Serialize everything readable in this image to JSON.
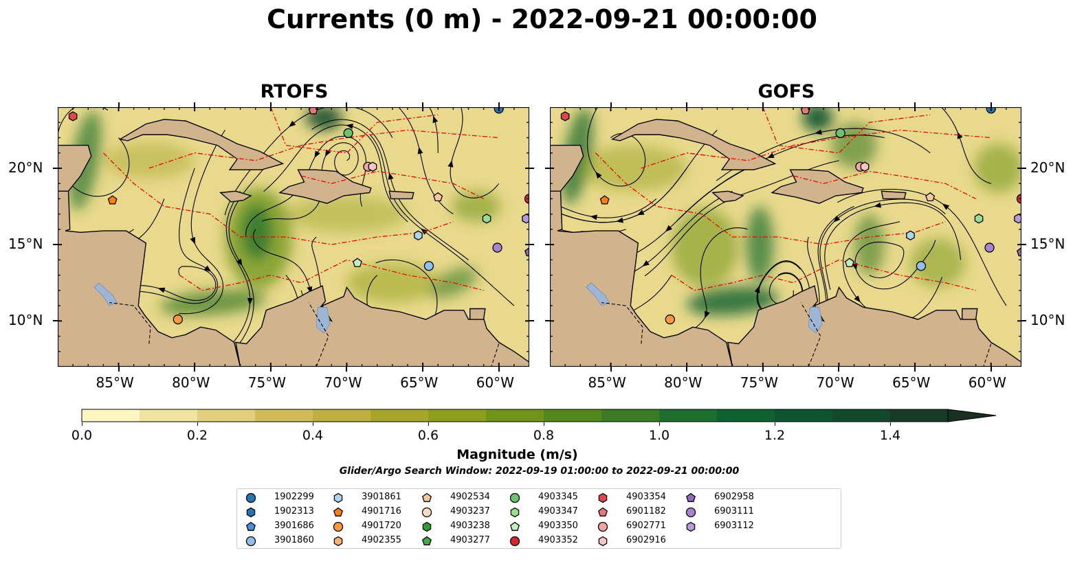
{
  "title": "Currents (0 m) - 2022-09-21 00:00:00",
  "panels": [
    {
      "id": "rtofs",
      "title": "RTOFS"
    },
    {
      "id": "gofs",
      "title": "GOFS"
    }
  ],
  "axes": {
    "lon_ticks": [
      "85°W",
      "80°W",
      "75°W",
      "70°W",
      "65°W",
      "60°W"
    ],
    "lat_ticks": [
      "20°N",
      "15°N",
      "10°N"
    ]
  },
  "colorbar": {
    "label": "Magnitude (m/s)",
    "ticks": [
      "0.0",
      "0.2",
      "0.4",
      "0.6",
      "0.8",
      "1.0",
      "1.2",
      "1.4"
    ],
    "colors": [
      "#fdf6c3",
      "#f0e4a0",
      "#e2cf7b",
      "#d1bb59",
      "#bfae40",
      "#a7a52a",
      "#8d9e1c",
      "#6f9419",
      "#52871d",
      "#3a7b24",
      "#1f6f2c",
      "#0f6230",
      "#0d5530",
      "#12492b",
      "#173b26",
      "#1a2f1f"
    ]
  },
  "search_window": "Glider/Argo Search Window: 2022-09-19 01:00:00 to 2022-09-21 00:00:00",
  "chart_data": {
    "type": "map",
    "variable": "Currents (0 m)",
    "time": "2022-09-21 00:00:00",
    "lon_range": [
      -89,
      -58
    ],
    "lat_range": [
      7,
      24
    ],
    "colorbar_range": [
      0.0,
      1.5
    ],
    "colorbar_extend": "max",
    "models": [
      "RTOFS",
      "GOFS"
    ],
    "floats": [
      {
        "id": "1902299",
        "marker": "circle",
        "color": "#1f77b4",
        "lon": -60.0,
        "lat": 23.9
      },
      {
        "id": "1902313",
        "marker": "hexagon",
        "color": "#1f77b4"
      },
      {
        "id": "3901686",
        "marker": "pentagon",
        "color": "#4a90e2"
      },
      {
        "id": "3901860",
        "marker": "circle",
        "color": "#8ec1ec",
        "lon": -64.6,
        "lat": 13.6
      },
      {
        "id": "3901861",
        "marker": "hexagon",
        "color": "#aed6f1",
        "lon": -65.3,
        "lat": 15.6
      },
      {
        "id": "4901716",
        "marker": "pentagon",
        "color": "#ff7f0e",
        "lon": -85.4,
        "lat": 17.9
      },
      {
        "id": "4901720",
        "marker": "circle",
        "color": "#ff9a3c",
        "lon": -81.1,
        "lat": 10.1
      },
      {
        "id": "4902355",
        "marker": "hexagon",
        "color": "#ffb26b"
      },
      {
        "id": "4902534",
        "marker": "pentagon",
        "color": "#ffc89a",
        "lon": -64.0,
        "lat": 18.1
      },
      {
        "id": "4903237",
        "marker": "circle",
        "color": "#ffdcc0"
      },
      {
        "id": "4903238",
        "marker": "hexagon",
        "color": "#2ca02c"
      },
      {
        "id": "4903277",
        "marker": "pentagon",
        "color": "#3fae3f"
      },
      {
        "id": "4903345",
        "marker": "circle",
        "color": "#6cc56c",
        "lon": -69.9,
        "lat": 22.3
      },
      {
        "id": "4903347",
        "marker": "hexagon",
        "color": "#98df8a",
        "lon": -60.8,
        "lat": 16.7
      },
      {
        "id": "4903350",
        "marker": "pentagon",
        "color": "#c6efc0",
        "lon": -69.3,
        "lat": 13.8
      },
      {
        "id": "4903352",
        "marker": "circle",
        "color": "#d62728",
        "lon": -58.0,
        "lat": 18.0
      },
      {
        "id": "4903354",
        "marker": "hexagon",
        "color": "#e04848",
        "lon": -88.0,
        "lat": 23.4
      },
      {
        "id": "6901182",
        "marker": "pentagon",
        "color": "#e7777a",
        "lon": -72.2,
        "lat": 23.8
      },
      {
        "id": "6902771",
        "marker": "circle",
        "color": "#f2a3a3",
        "lon": -68.6,
        "lat": 20.1
      },
      {
        "id": "6902916",
        "marker": "hexagon",
        "color": "#f7c6c0",
        "lon": -68.3,
        "lat": 20.1
      },
      {
        "id": "6902958",
        "marker": "pentagon",
        "color": "#9467bd",
        "lon": -58.0,
        "lat": 14.5
      },
      {
        "id": "6903111",
        "marker": "circle",
        "color": "#a983d0",
        "lon": -60.1,
        "lat": 14.8
      },
      {
        "id": "6903112",
        "marker": "hexagon",
        "color": "#b89adb",
        "lon": -58.2,
        "lat": 16.7
      }
    ]
  }
}
